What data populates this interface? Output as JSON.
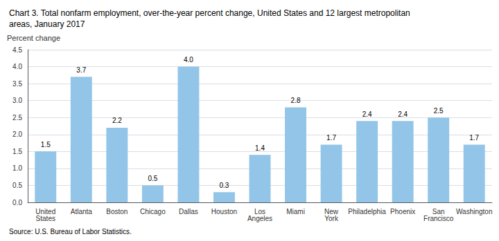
{
  "chart_data": {
    "type": "bar",
    "title": "Chart 3. Total nonfarm employment, over-the-year percent change, United States and 12 largest metropolitan\nareas, January 2017",
    "ylabel": "Percent change",
    "source": "Source: U.S. Bureau of Labor Statistics.",
    "categories": [
      "United\nStates",
      "Atlanta",
      "Boston",
      "Chicago",
      "Dallas",
      "Houston",
      "Los\nAngeles",
      "Miami",
      "New\nYork",
      "Philadelphia",
      "Phoenix",
      "San\nFrancisco",
      "Washington"
    ],
    "values": [
      1.5,
      3.7,
      2.2,
      0.5,
      4.0,
      0.3,
      1.4,
      2.8,
      1.7,
      2.4,
      2.4,
      2.5,
      1.7
    ],
    "value_labels": [
      "1.5",
      "3.7",
      "2.2",
      "0.5",
      "4.0",
      "0.3",
      "1.4",
      "2.8",
      "1.7",
      "2.4",
      "2.4",
      "2.5",
      "1.7"
    ],
    "data_labels": true,
    "color": "#92C5E8",
    "ylim": [
      0,
      4.5
    ],
    "yticks": [
      {
        "value": 0,
        "label": "0.0"
      },
      0.5,
      {
        "value": 1,
        "label": "1.0"
      },
      1.5,
      {
        "value": 2,
        "label": "2.0"
      },
      2.5,
      {
        "value": 3,
        "label": "3.0"
      },
      3.5,
      {
        "value": 4,
        "label": "4.0"
      },
      4.5
    ],
    "grid": true
  }
}
